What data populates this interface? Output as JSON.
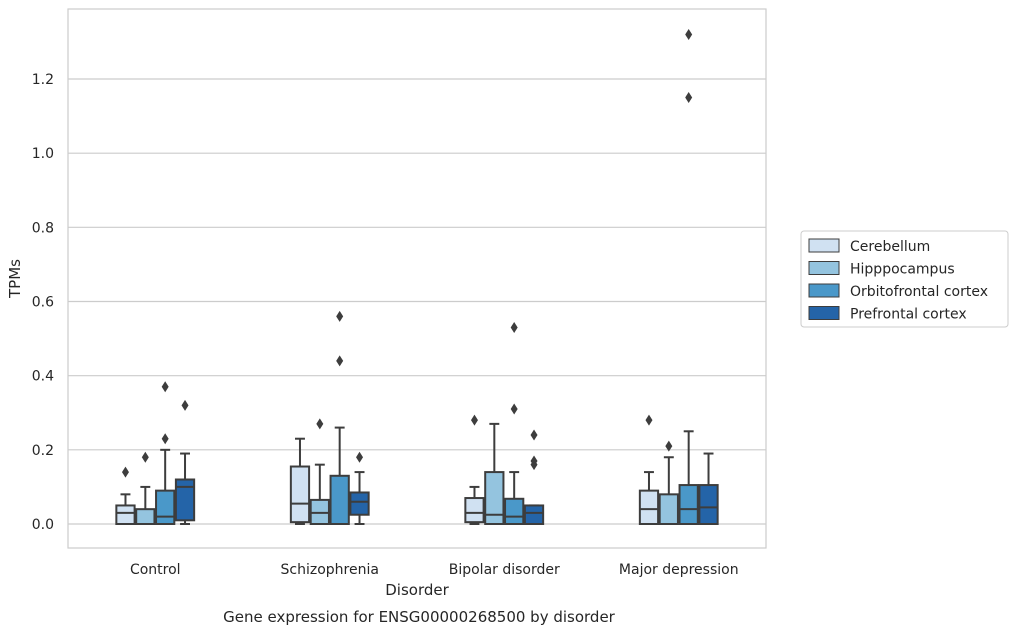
{
  "chart_data": {
    "type": "box",
    "title": "Gene expression for ENSG00000268500 by disorder",
    "xlabel": "Disorder",
    "ylabel": "TPMs",
    "ylim": [
      -0.065,
      1.38
    ],
    "yticks": [
      0.0,
      0.2,
      0.4,
      0.6,
      0.8,
      1.0,
      1.2
    ],
    "ytick_labels": [
      "0.0",
      "0.2",
      "0.4",
      "0.6",
      "0.8",
      "1.0",
      "1.2"
    ],
    "grid": "horizontal",
    "legend_position": "right",
    "categories": [
      "Control",
      "Schizophrenia",
      "Bipolar disorder",
      "Major depression"
    ],
    "series": [
      {
        "name": "Cerebellum",
        "color": "#d0e1f2",
        "boxes": [
          {
            "whislo": 0.0,
            "q1": 0.0,
            "med": 0.03,
            "q3": 0.05,
            "whishi": 0.08,
            "fliers": [
              0.14
            ]
          },
          {
            "whislo": 0.0,
            "q1": 0.005,
            "med": 0.055,
            "q3": 0.155,
            "whishi": 0.23,
            "fliers": []
          },
          {
            "whislo": 0.0,
            "q1": 0.005,
            "med": 0.03,
            "q3": 0.07,
            "whishi": 0.1,
            "fliers": [
              0.28
            ]
          },
          {
            "whislo": 0.0,
            "q1": 0.0,
            "med": 0.04,
            "q3": 0.09,
            "whishi": 0.14,
            "fliers": [
              0.28
            ]
          }
        ]
      },
      {
        "name": "Hipppocampus",
        "color": "#94c4df",
        "boxes": [
          {
            "whislo": 0.0,
            "q1": 0.0,
            "med": 0.0,
            "q3": 0.04,
            "whishi": 0.1,
            "fliers": [
              0.18
            ]
          },
          {
            "whislo": 0.0,
            "q1": 0.0,
            "med": 0.03,
            "q3": 0.065,
            "whishi": 0.16,
            "fliers": [
              0.27
            ]
          },
          {
            "whislo": 0.0,
            "q1": 0.0,
            "med": 0.025,
            "q3": 0.14,
            "whishi": 0.27,
            "fliers": []
          },
          {
            "whislo": 0.0,
            "q1": 0.0,
            "med": 0.0,
            "q3": 0.08,
            "whishi": 0.18,
            "fliers": [
              0.21
            ]
          }
        ]
      },
      {
        "name": "Orbitofrontal cortex",
        "color": "#4a98c9",
        "boxes": [
          {
            "whislo": 0.0,
            "q1": 0.0,
            "med": 0.02,
            "q3": 0.09,
            "whishi": 0.2,
            "fliers": [
              0.23,
              0.37
            ]
          },
          {
            "whislo": 0.0,
            "q1": 0.0,
            "med": 0.0,
            "q3": 0.13,
            "whishi": 0.26,
            "fliers": [
              0.44,
              0.56
            ]
          },
          {
            "whislo": 0.0,
            "q1": 0.0,
            "med": 0.02,
            "q3": 0.068,
            "whishi": 0.14,
            "fliers": [
              0.31,
              0.53
            ]
          },
          {
            "whislo": 0.0,
            "q1": 0.0,
            "med": 0.04,
            "q3": 0.105,
            "whishi": 0.25,
            "fliers": [
              1.15,
              1.32
            ]
          }
        ]
      },
      {
        "name": "Prefrontal cortex",
        "color": "#2464a8",
        "boxes": [
          {
            "whislo": 0.0,
            "q1": 0.01,
            "med": 0.1,
            "q3": 0.12,
            "whishi": 0.19,
            "fliers": [
              0.32
            ]
          },
          {
            "whislo": 0.0,
            "q1": 0.025,
            "med": 0.06,
            "q3": 0.085,
            "whishi": 0.14,
            "fliers": [
              0.18
            ]
          },
          {
            "whislo": 0.0,
            "q1": 0.0,
            "med": 0.03,
            "q3": 0.05,
            "whishi": 0.05,
            "fliers": [
              0.16,
              0.17,
              0.24
            ]
          },
          {
            "whislo": 0.0,
            "q1": 0.0,
            "med": 0.045,
            "q3": 0.105,
            "whishi": 0.19,
            "fliers": []
          }
        ]
      }
    ]
  }
}
